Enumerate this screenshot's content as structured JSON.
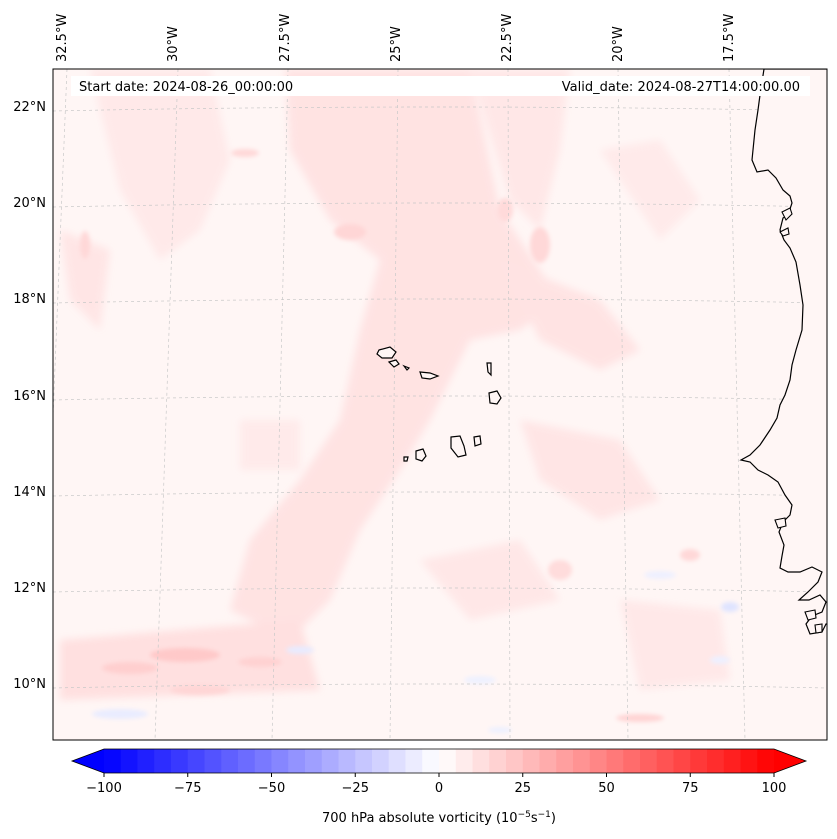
{
  "header": {
    "start_label": "Start date: 2024-08-26_00:00:00",
    "valid_label": "Valid_date: 2024-08-27T14:00:00.00"
  },
  "map": {
    "variable": "700 hPa absolute vorticity",
    "lon_labels": [
      "32.5°W",
      "30°W",
      "27.5°W",
      "25°W",
      "22.5°W",
      "20°W",
      "17.5°W"
    ],
    "lat_labels": [
      "22°N",
      "20°N",
      "18°N",
      "16°N",
      "14°N",
      "12°N",
      "10°N"
    ]
  },
  "colorbar": {
    "label_prefix": "700 hPa absolute vorticity (10",
    "label_exp1": "−5",
    "label_mid": "s",
    "label_exp2": "−1",
    "label_suffix": ")",
    "min": -100,
    "max": 100,
    "ticks": [
      "−100",
      "−75",
      "−50",
      "−25",
      "0",
      "25",
      "50",
      "75",
      "100"
    ],
    "colors": {
      "negative": "#0000ff",
      "zero": "#ffffff",
      "positive": "#ff0000"
    }
  }
}
